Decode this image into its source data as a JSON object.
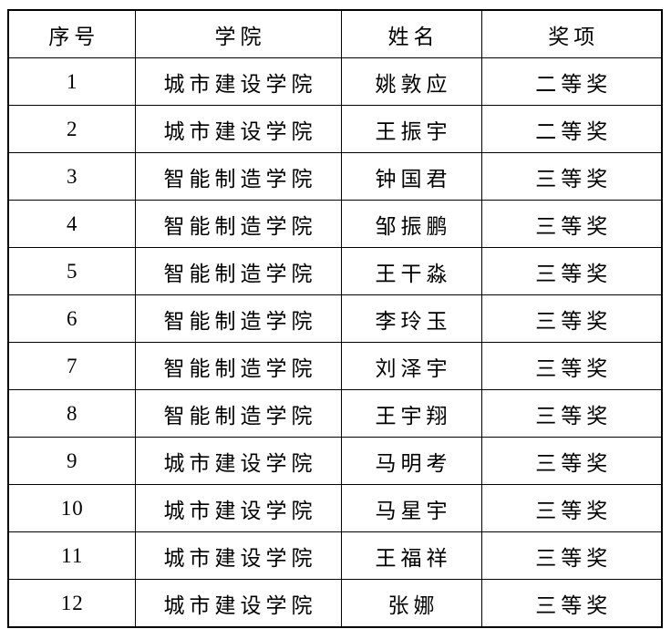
{
  "page": {
    "background": "#ffffff"
  },
  "table": {
    "border_color": "#000000",
    "text_color": "#000000",
    "columns": [
      {
        "key": "index",
        "label": "序号"
      },
      {
        "key": "college",
        "label": "学院"
      },
      {
        "key": "name",
        "label": "姓名"
      },
      {
        "key": "award",
        "label": "奖项"
      }
    ],
    "rows": [
      {
        "index": "1",
        "college": "城市建设学院",
        "name": "姚敦应",
        "award": "二等奖"
      },
      {
        "index": "2",
        "college": "城市建设学院",
        "name": "王振宇",
        "award": "二等奖"
      },
      {
        "index": "3",
        "college": "智能制造学院",
        "name": "钟国君",
        "award": "三等奖"
      },
      {
        "index": "4",
        "college": "智能制造学院",
        "name": "邹振鹏",
        "award": "三等奖"
      },
      {
        "index": "5",
        "college": "智能制造学院",
        "name": "王干淼",
        "award": "三等奖"
      },
      {
        "index": "6",
        "college": "智能制造学院",
        "name": "李玲玉",
        "award": "三等奖"
      },
      {
        "index": "7",
        "college": "智能制造学院",
        "name": "刘泽宇",
        "award": "三等奖"
      },
      {
        "index": "8",
        "college": "智能制造学院",
        "name": "王宇翔",
        "award": "三等奖"
      },
      {
        "index": "9",
        "college": "城市建设学院",
        "name": "马明考",
        "award": "三等奖"
      },
      {
        "index": "10",
        "college": "城市建设学院",
        "name": "马星宇",
        "award": "三等奖"
      },
      {
        "index": "11",
        "college": "城市建设学院",
        "name": "王福祥",
        "award": "三等奖"
      },
      {
        "index": "12",
        "college": "城市建设学院",
        "name": "张娜",
        "award": "三等奖"
      }
    ]
  }
}
